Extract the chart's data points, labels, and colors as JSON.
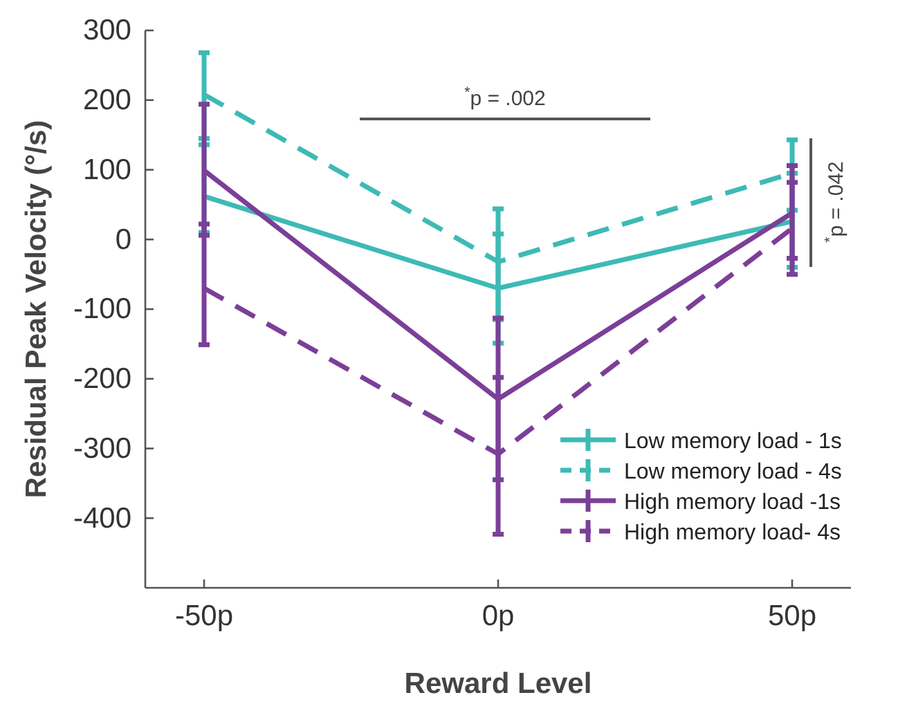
{
  "chart_data": {
    "type": "line",
    "xlabel": "Reward Level",
    "ylabel": "Residual Peak Velocity (°/s)",
    "x": [
      -50,
      0,
      50
    ],
    "xlim": [
      -60,
      60
    ],
    "xticks": [
      {
        "value": -50,
        "label": "-50p"
      },
      {
        "value": 0,
        "label": "0p"
      },
      {
        "value": 50,
        "label": "50p"
      }
    ],
    "ylim": [
      -500,
      300
    ],
    "yticks": [
      -400,
      -300,
      -200,
      -100,
      0,
      100,
      200,
      300
    ],
    "series": [
      {
        "name": "Low memory load - 1s",
        "color": "#3dbab5",
        "line_style": "solid",
        "values": [
          62,
          -70,
          26
        ],
        "errors": [
          [
            10,
            136
          ],
          [
            -149,
            8
          ],
          [
            -40,
            95
          ]
        ]
      },
      {
        "name": "Low memory load - 4s",
        "color": "#3dbab5",
        "line_style": "dashed",
        "values": [
          208,
          -32,
          95
        ],
        "errors": [
          [
            145,
            268
          ],
          [
            -115,
            44
          ],
          [
            42,
            143
          ]
        ]
      },
      {
        "name": "High memory load -1s",
        "color": "#7b3f98",
        "line_style": "solid",
        "values": [
          99,
          -229,
          38
        ],
        "errors": [
          [
            6,
            194
          ],
          [
            -345,
            -113
          ],
          [
            -27,
            106
          ]
        ]
      },
      {
        "name": "High memory load- 4s",
        "color": "#7b3f98",
        "line_style": "dashed",
        "values": [
          -70,
          -308,
          16
        ],
        "errors": [
          [
            -151,
            22
          ],
          [
            -423,
            -198
          ],
          [
            -50,
            82
          ]
        ]
      }
    ],
    "annotations": [
      "$^{*}$p = .002",
      "$^{*}$p = .042"
    ],
    "legend": "bottom right",
    "grid": false,
    "marker": "none"
  }
}
